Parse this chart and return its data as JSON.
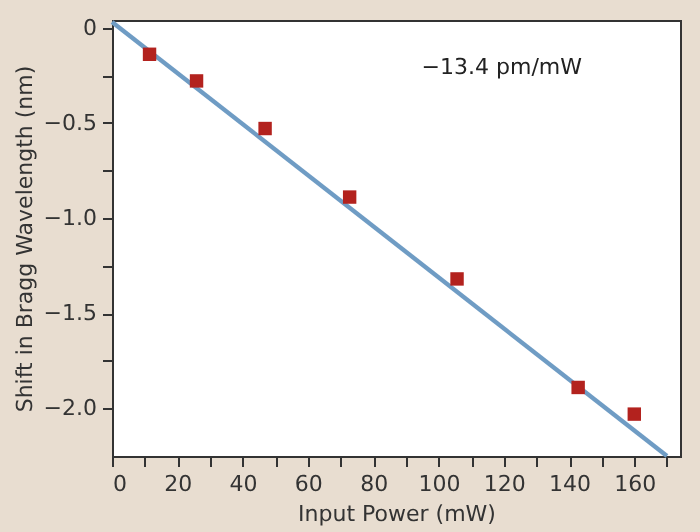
{
  "chart_data": {
    "type": "scatter",
    "xlabel": "Input Power (mW)",
    "ylabel": "Shift in Bragg Wavelength (nm)",
    "annotations": [
      "−13.4 pm/mW"
    ],
    "series": [
      {
        "color": "#b3221e",
        "marker": "square",
        "x": [
          11.5,
          25.9,
          46.9,
          72.8,
          105.7,
          142.8,
          160
        ],
        "values": [
          -0.14,
          -0.28,
          -0.53,
          -0.89,
          -1.32,
          -1.89,
          -2.03
        ]
      },
      {
        "type": "line",
        "color": "#6f9cc4",
        "line_style": "solid",
        "x": [
          0,
          170
        ],
        "values": [
          0.03,
          -2.25
        ]
      }
    ],
    "xlim": [
      0,
      174
    ],
    "ylim": [
      -2.25,
      0.04
    ],
    "xticks": [
      0,
      {
        "value": 10,
        "label": null
      },
      20,
      {
        "value": 30,
        "label": null
      },
      40,
      {
        "value": 50,
        "label": null
      },
      60,
      {
        "value": 70,
        "label": null
      },
      80,
      {
        "value": 90,
        "label": null
      },
      100,
      {
        "value": 110,
        "label": null
      },
      120,
      {
        "value": 130,
        "label": null
      },
      140,
      {
        "value": 150,
        "label": null
      },
      160,
      {
        "value": 170,
        "label": null
      }
    ],
    "yticks": [
      0,
      {
        "value": -0.25,
        "label": null
      },
      {
        "value": -0.5,
        "label": "−0.5"
      },
      {
        "value": -0.75,
        "label": null
      },
      {
        "value": -1.0,
        "label": "−1.0"
      },
      {
        "value": -1.25,
        "label": null
      },
      {
        "value": -1.5,
        "label": "−1.5"
      },
      {
        "value": -1.75,
        "label": null
      },
      {
        "value": -2.0,
        "label": "−2.0"
      }
    ],
    "grid": false
  }
}
